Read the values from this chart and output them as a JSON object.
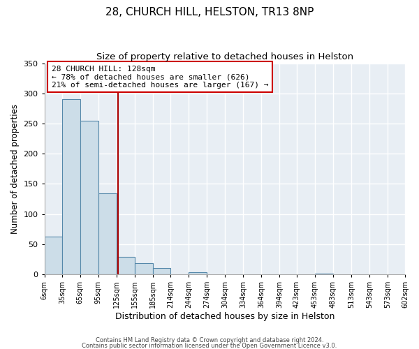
{
  "title": "28, CHURCH HILL, HELSTON, TR13 8NP",
  "subtitle": "Size of property relative to detached houses in Helston",
  "xlabel": "Distribution of detached houses by size in Helston",
  "ylabel": "Number of detached properties",
  "bin_edges": [
    6,
    35,
    65,
    95,
    125,
    155,
    185,
    214,
    244,
    274,
    304,
    334,
    364,
    394,
    423,
    453,
    483,
    513,
    543,
    573,
    602
  ],
  "bar_heights": [
    62,
    291,
    255,
    134,
    29,
    18,
    11,
    0,
    3,
    0,
    0,
    0,
    0,
    0,
    0,
    1,
    0,
    0,
    0,
    0
  ],
  "bar_color": "#ccdde8",
  "bar_edge_color": "#5588aa",
  "vline_x": 128,
  "vline_color": "#aa0000",
  "ylim": [
    0,
    350
  ],
  "annotation_text": "28 CHURCH HILL: 128sqm\n← 78% of detached houses are smaller (626)\n21% of semi-detached houses are larger (167) →",
  "footer_line1": "Contains HM Land Registry data © Crown copyright and database right 2024.",
  "footer_line2": "Contains public sector information licensed under the Open Government Licence v3.0.",
  "fig_background_color": "#ffffff",
  "plot_background_color": "#e8eef4",
  "grid_color": "#ffffff",
  "title_fontsize": 11,
  "subtitle_fontsize": 9.5,
  "ylabel_fontsize": 8.5,
  "xlabel_fontsize": 9,
  "tick_fontsize": 7,
  "tick_labels": [
    "6sqm",
    "35sqm",
    "65sqm",
    "95sqm",
    "125sqm",
    "155sqm",
    "185sqm",
    "214sqm",
    "244sqm",
    "274sqm",
    "304sqm",
    "334sqm",
    "364sqm",
    "394sqm",
    "423sqm",
    "453sqm",
    "483sqm",
    "513sqm",
    "543sqm",
    "573sqm",
    "602sqm"
  ]
}
